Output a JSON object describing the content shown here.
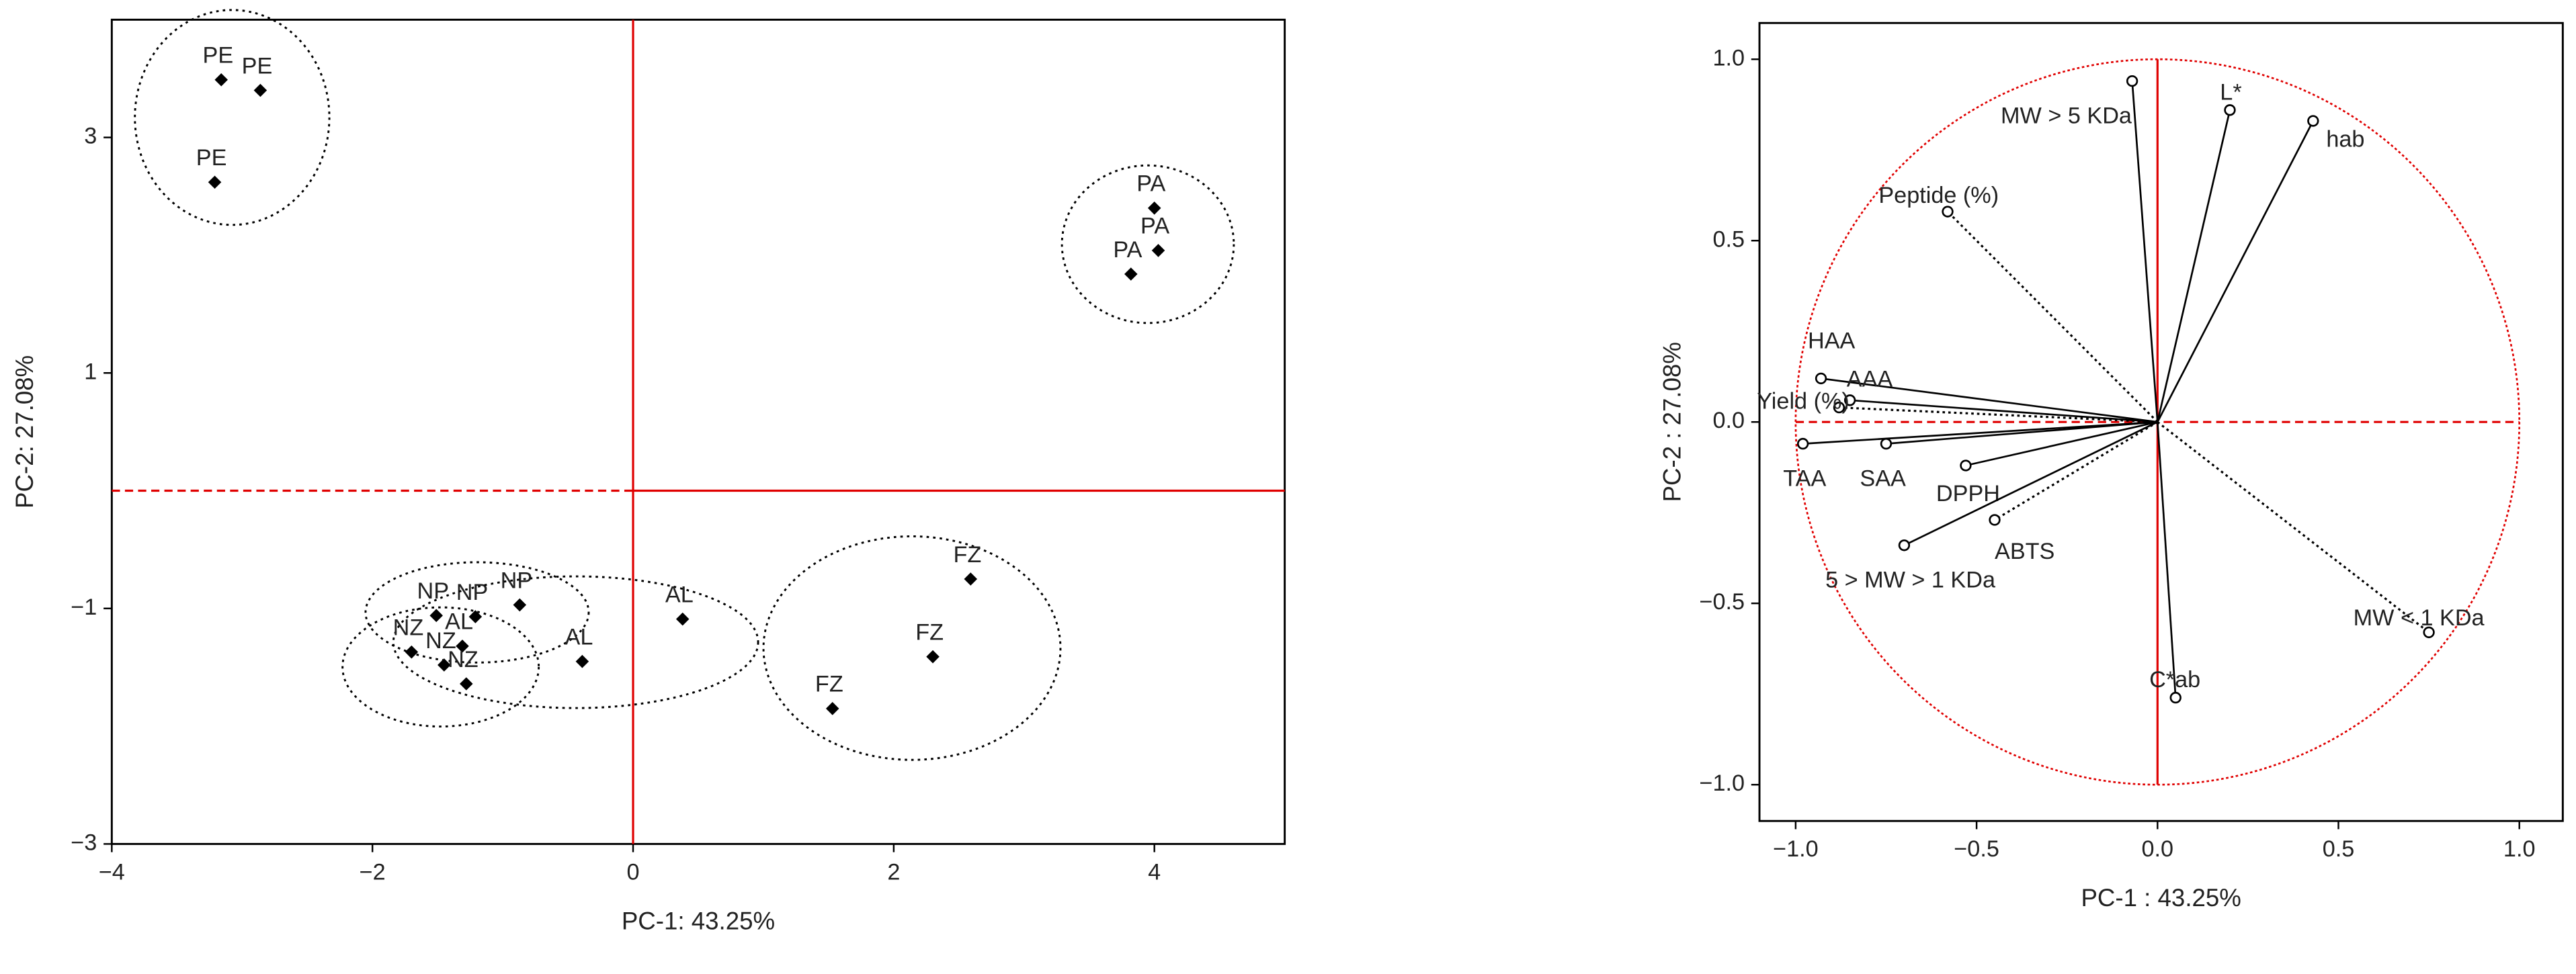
{
  "chart_data": [
    {
      "type": "scatter",
      "xlabel": "PC-1: 43.25%",
      "ylabel": "PC-2: 27.08%",
      "xlim": [
        -4,
        5
      ],
      "ylim": [
        -3,
        4
      ],
      "xticks": [
        {
          "value": -4,
          "label": "−4"
        },
        {
          "value": -2,
          "label": "−2"
        },
        0,
        2,
        4
      ],
      "yticks": [
        {
          "value": -3,
          "label": "−3"
        },
        {
          "value": -1,
          "label": "−1"
        },
        1,
        3
      ],
      "reference_color": "#e00000",
      "series": [
        {
          "name": "PE",
          "color": "#000000",
          "x": [
            -3.16,
            -2.86,
            -3.21
          ],
          "y": [
            3.49,
            3.4,
            2.62
          ]
        },
        {
          "name": "PA",
          "color": "#000000",
          "x": [
            4.0,
            4.03,
            3.82
          ],
          "y": [
            2.4,
            2.04,
            1.84
          ]
        },
        {
          "name": "NP",
          "color": "#000000",
          "x": [
            -1.51,
            -1.21,
            -0.87
          ],
          "y": [
            -1.06,
            -1.07,
            -0.97
          ]
        },
        {
          "name": "AL",
          "color": "#000000",
          "x": [
            0.38,
            -0.39,
            -1.31
          ],
          "y": [
            -1.09,
            -1.45,
            -1.32
          ]
        },
        {
          "name": "NZ",
          "color": "#000000",
          "x": [
            -1.7,
            -1.45,
            -1.28
          ],
          "y": [
            -1.37,
            -1.48,
            -1.64
          ]
        },
        {
          "name": "FZ",
          "color": "#000000",
          "x": [
            2.59,
            2.3,
            1.53
          ],
          "y": [
            -0.75,
            -1.41,
            -1.85
          ]
        }
      ]
    },
    {
      "type": "loadings",
      "xlabel": "PC-1 : 43.25%",
      "ylabel": "PC-2 : 27.08%",
      "xlim": [
        -1.1,
        1.12
      ],
      "ylim": [
        -1.1,
        1.1
      ],
      "xticks": [
        {
          "value": -1.0,
          "label": "−1.0"
        },
        {
          "value": -0.5,
          "label": "−0.5"
        },
        {
          "value": 0.0,
          "label": "0.0"
        },
        0.5,
        {
          "value": 1.0,
          "label": "1.0"
        }
      ],
      "yticks": [
        {
          "value": -1.0,
          "label": "−1.0"
        },
        {
          "value": -0.5,
          "label": "−0.5"
        },
        {
          "value": 0.0,
          "label": "0.0"
        },
        0.5,
        {
          "value": 1.0,
          "label": "1.0"
        }
      ],
      "reference_color": "#e00000",
      "color": "#000000",
      "categories": [
        "MW > 5 KDa",
        "L*",
        "hab",
        "Peptide (%)",
        "HAA",
        "AAA",
        "Yield (%)",
        "TAA",
        "SAA",
        "DPPH",
        "ABTS",
        "5 > MW > 1 KDa",
        "MW < 1 KDa",
        "C*ab"
      ],
      "x": [
        -0.07,
        0.2,
        0.43,
        -0.58,
        -0.93,
        -0.85,
        -0.88,
        -0.98,
        -0.75,
        -0.53,
        -0.45,
        -0.7,
        0.75,
        0.05
      ],
      "y": [
        0.94,
        0.86,
        0.83,
        0.58,
        0.12,
        0.06,
        0.04,
        -0.06,
        -0.06,
        -0.12,
        -0.27,
        -0.34,
        -0.58,
        -0.76
      ],
      "styles": [
        "solid",
        "solid",
        "solid",
        "dotted",
        "solid",
        "solid",
        "dotted",
        "solid",
        "solid",
        "solid",
        "dotted",
        "solid",
        "dotted",
        "solid"
      ]
    }
  ]
}
